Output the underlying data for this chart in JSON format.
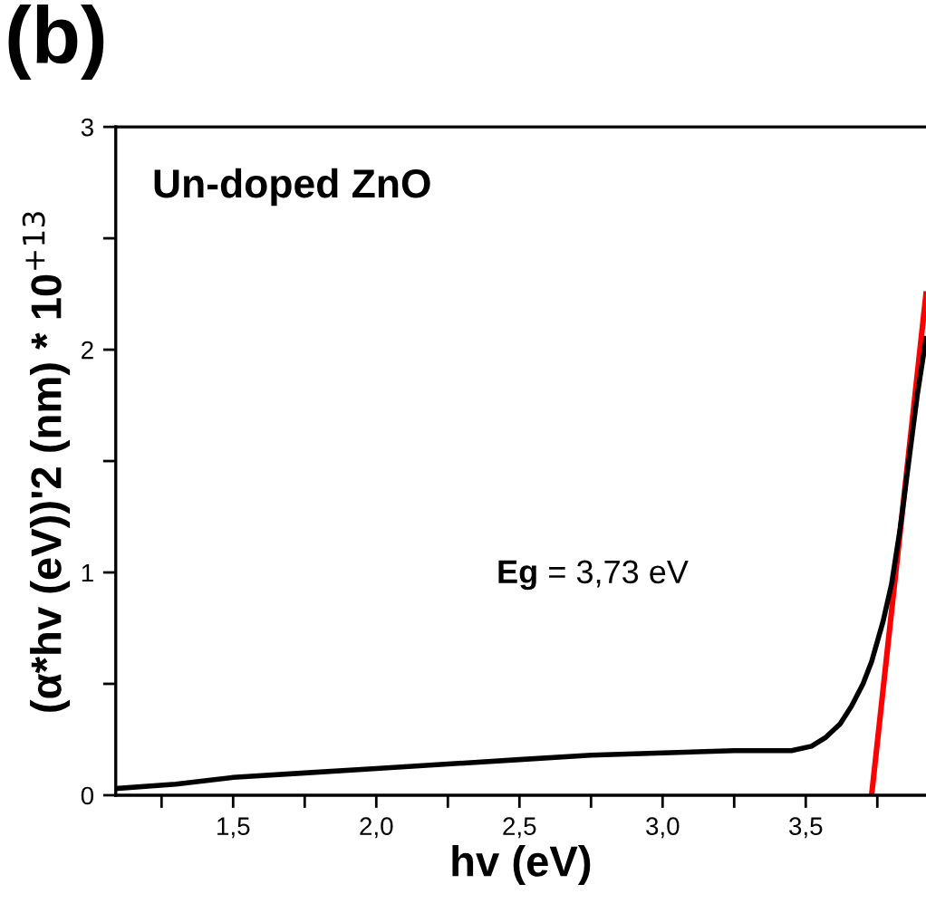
{
  "chart_data": {
    "type": "line",
    "title": "(b)",
    "xlabel": "hv (eV)",
    "ylabel": "(α*hv (eV))'2 (nm) * 10$^{+13}$",
    "annotations": [
      "Un-doped ZnO",
      "Eg = 3,73 eV"
    ],
    "series": [
      {
        "color": "#000000",
        "x": [
          1.09,
          1.3,
          1.5,
          1.75,
          2.0,
          2.25,
          2.5,
          2.75,
          3.0,
          3.25,
          3.45,
          3.52,
          3.57,
          3.62,
          3.66,
          3.7,
          3.73,
          3.77,
          3.8,
          3.83,
          3.86,
          3.89,
          3.92
        ],
        "values": [
          0.03,
          0.05,
          0.08,
          0.1,
          0.12,
          0.14,
          0.16,
          0.18,
          0.19,
          0.2,
          0.2,
          0.22,
          0.26,
          0.32,
          0.4,
          0.5,
          0.6,
          0.78,
          0.95,
          1.2,
          1.5,
          1.8,
          2.05
        ]
      },
      {
        "color": "#ff0000",
        "x": [
          3.73,
          3.92
        ],
        "values": [
          0,
          2.25
        ]
      }
    ],
    "xlim": [
      1.09,
      3.92
    ],
    "ylim": [
      0,
      3
    ],
    "xticks": [
      {
        "value": 1.25,
        "label": null
      },
      {
        "value": 1.5,
        "label": "1,5"
      },
      {
        "value": 1.75,
        "label": null
      },
      {
        "value": 2.0,
        "label": "2,0"
      },
      {
        "value": 2.25,
        "label": null
      },
      {
        "value": 2.5,
        "label": "2,5"
      },
      {
        "value": 2.75,
        "label": null
      },
      {
        "value": 3.0,
        "label": "3,0"
      },
      {
        "value": 3.25,
        "label": null
      },
      {
        "value": 3.5,
        "label": "3,5"
      },
      {
        "value": 3.75,
        "label": null
      }
    ],
    "yticks": [
      0,
      {
        "value": 0.5,
        "label": null
      },
      1,
      {
        "value": 1.5,
        "label": null
      },
      2,
      {
        "value": 2.5,
        "label": null
      },
      3
    ],
    "grid": false,
    "legend": false,
    "marker": "none",
    "line_style": "solid"
  }
}
